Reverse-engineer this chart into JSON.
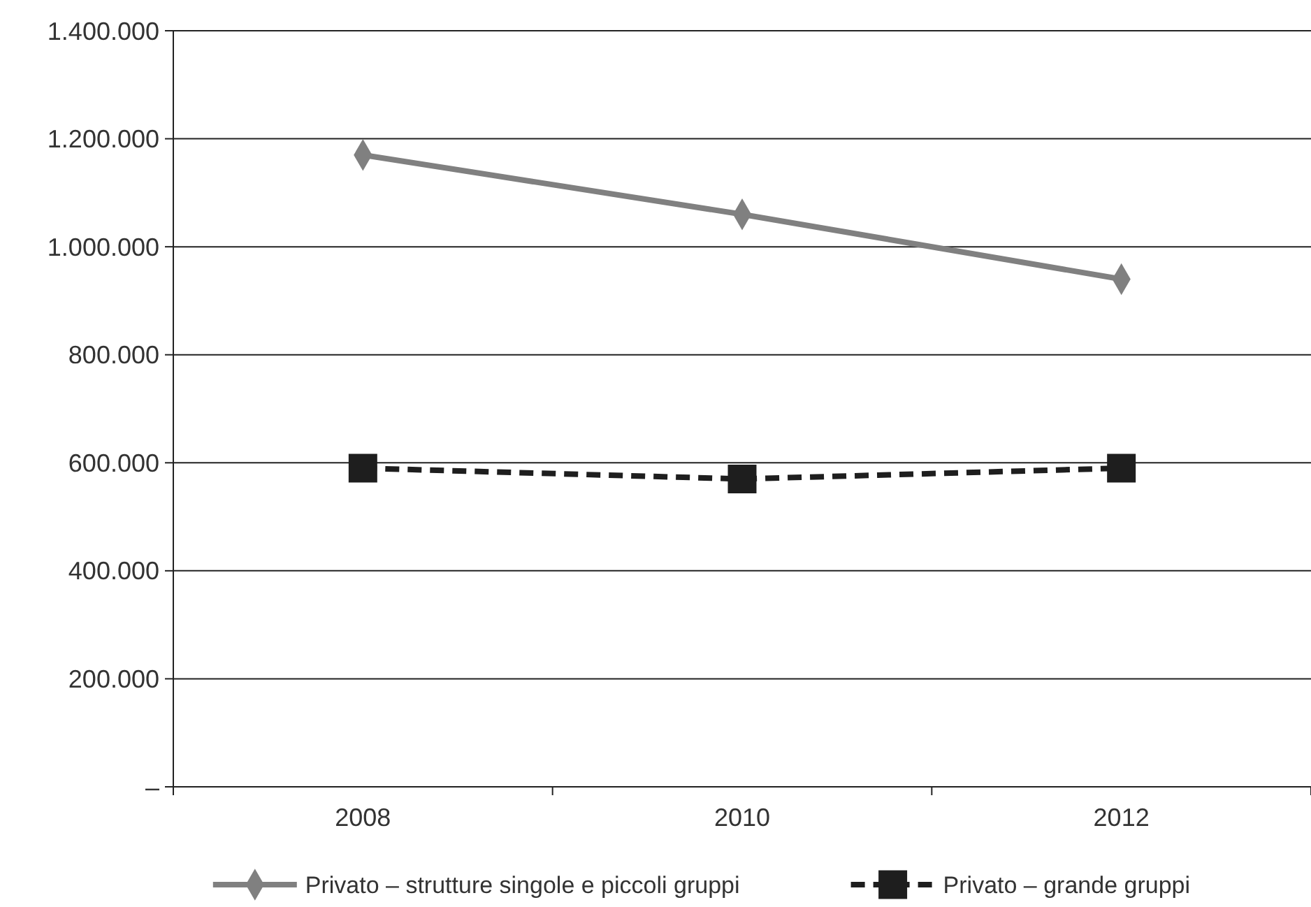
{
  "chart_data": {
    "type": "line",
    "categories": [
      "2008",
      "2010",
      "2012"
    ],
    "series": [
      {
        "name": "Privato – strutture singole e piccoli gruppi",
        "color": "#808080",
        "values": [
          1170000,
          1060000,
          940000
        ],
        "marker": "diamond",
        "line_style": "solid"
      },
      {
        "name": "Privato – grande gruppi",
        "color": "#1e1e1e",
        "values": [
          590000,
          570000,
          590000
        ],
        "marker": "square",
        "line_style": "dashed"
      }
    ],
    "ylim": [
      0,
      1400000
    ],
    "yticks": [
      {
        "value": 0,
        "label": "–"
      },
      {
        "value": 200000,
        "label": "200.000"
      },
      {
        "value": 400000,
        "label": "400.000"
      },
      {
        "value": 600000,
        "label": "600.000"
      },
      {
        "value": 800000,
        "label": "800.000"
      },
      {
        "value": 1000000,
        "label": "1.000.000"
      },
      {
        "value": 1200000,
        "label": "1.200.000"
      },
      {
        "value": 1400000,
        "label": "1.400.000"
      }
    ],
    "grid": "y",
    "legend": "bottom"
  }
}
